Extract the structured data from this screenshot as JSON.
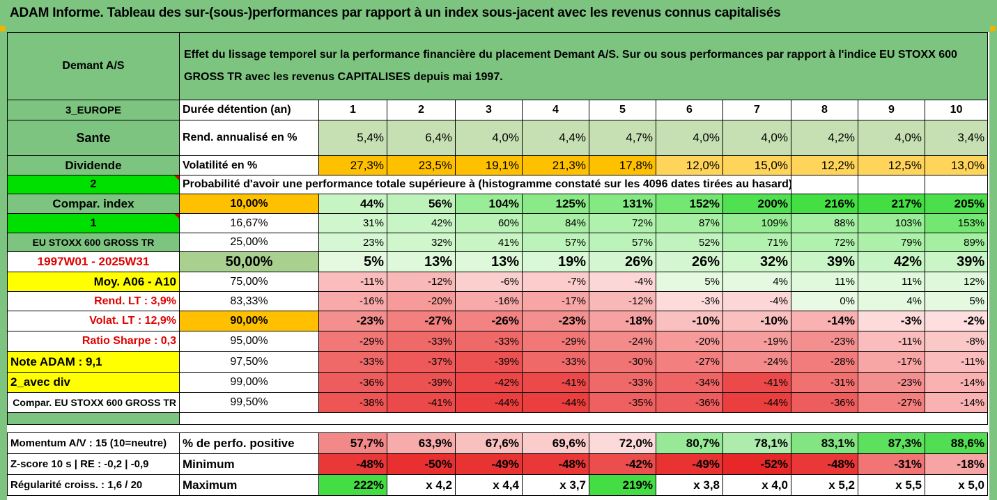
{
  "title": "ADAM Informe. Tableau des sur-(sous-)performances par rapport à un index sous-jacent avec les revenus connus capitalisés",
  "header": {
    "fund": "Demant A/S",
    "description": "Effet du lissage temporel sur la performance financière du placement Demant A/S. Sur ou sous performances par rapport à l'indice EU STOXX 600 GROSS TR avec les revenus CAPITALISES depuis mai 1997."
  },
  "left_labels": {
    "region": "3_EUROPE",
    "sector": "Sante",
    "dividend": "Dividende",
    "code2": "2",
    "compar_index": "Compar. index",
    "code1": "1",
    "index_name": "EU STOXX 600 GROSS TR",
    "period": "1997W01 - 2025W31",
    "moy": "Moy. A06 - A10",
    "rend_lt": "Rend. LT :    3,9%",
    "volat_lt": "Volat. LT :   12,9%",
    "sharpe": "Ratio Sharpe :    0,3",
    "note": "Note ADAM : 9,1",
    "avec_div": "2_avec div",
    "compar_full": "Compar. EU STOXX 600 GROSS TR"
  },
  "durations": {
    "label": "Durée détention (an)",
    "years": [
      "1",
      "2",
      "3",
      "4",
      "5",
      "6",
      "7",
      "8",
      "9",
      "10"
    ]
  },
  "rend": {
    "label": "Rend. annualisé en %",
    "values": [
      "5,4%",
      "6,4%",
      "4,0%",
      "4,4%",
      "4,7%",
      "4,0%",
      "4,0%",
      "4,2%",
      "4,0%",
      "3,4%"
    ]
  },
  "vol": {
    "label": "Volatilité en %",
    "values": [
      "27,3%",
      "23,5%",
      "19,1%",
      "21,3%",
      "17,8%",
      "12,0%",
      "15,0%",
      "12,2%",
      "12,5%",
      "13,0%"
    ]
  },
  "prob_title": "Probabilité d'avoir une performance totale supérieure à (histogramme constaté sur les 4096 dates tirées au hasard)",
  "quantiles": [
    {
      "q": "10,00%",
      "v": [
        "44%",
        "56%",
        "104%",
        "125%",
        "131%",
        "152%",
        "200%",
        "216%",
        "217%",
        "205%"
      ]
    },
    {
      "q": "16,67%",
      "v": [
        "31%",
        "42%",
        "60%",
        "84%",
        "72%",
        "87%",
        "109%",
        "88%",
        "103%",
        "153%"
      ]
    },
    {
      "q": "25,00%",
      "v": [
        "23%",
        "32%",
        "41%",
        "57%",
        "57%",
        "52%",
        "71%",
        "72%",
        "79%",
        "89%"
      ]
    },
    {
      "q": "50,00%",
      "v": [
        "5%",
        "13%",
        "13%",
        "19%",
        "26%",
        "26%",
        "32%",
        "39%",
        "42%",
        "39%"
      ]
    },
    {
      "q": "75,00%",
      "v": [
        "-11%",
        "-12%",
        "-6%",
        "-7%",
        "-4%",
        "5%",
        "4%",
        "11%",
        "11%",
        "12%"
      ]
    },
    {
      "q": "83,33%",
      "v": [
        "-16%",
        "-20%",
        "-16%",
        "-17%",
        "-12%",
        "-3%",
        "-4%",
        "0%",
        "4%",
        "5%"
      ]
    },
    {
      "q": "90,00%",
      "v": [
        "-23%",
        "-27%",
        "-26%",
        "-23%",
        "-18%",
        "-10%",
        "-10%",
        "-14%",
        "-3%",
        "-2%"
      ]
    },
    {
      "q": "95,00%",
      "v": [
        "-29%",
        "-33%",
        "-33%",
        "-29%",
        "-24%",
        "-20%",
        "-19%",
        "-23%",
        "-11%",
        "-8%"
      ]
    },
    {
      "q": "97,50%",
      "v": [
        "-33%",
        "-37%",
        "-39%",
        "-33%",
        "-30%",
        "-27%",
        "-24%",
        "-28%",
        "-17%",
        "-11%"
      ]
    },
    {
      "q": "99,00%",
      "v": [
        "-36%",
        "-39%",
        "-42%",
        "-41%",
        "-33%",
        "-34%",
        "-41%",
        "-31%",
        "-23%",
        "-14%"
      ]
    },
    {
      "q": "99,50%",
      "v": [
        "-38%",
        "-41%",
        "-44%",
        "-44%",
        "-35%",
        "-36%",
        "-44%",
        "-36%",
        "-27%",
        "-14%"
      ]
    }
  ],
  "bottom": {
    "momentum": {
      "label": "Momentum A/V : 15 (10=neutre)",
      "metric": "% de perfo. positive",
      "values": [
        "57,7%",
        "63,9%",
        "67,6%",
        "69,6%",
        "72,0%",
        "80,7%",
        "78,1%",
        "83,1%",
        "87,3%",
        "88,6%"
      ]
    },
    "zscore": {
      "label": "Z-score 10 s  |  RE : -0,2  |  -0,9",
      "metric": "Minimum",
      "values": [
        "-48%",
        "-50%",
        "-49%",
        "-48%",
        "-42%",
        "-49%",
        "-52%",
        "-48%",
        "-31%",
        "-18%"
      ]
    },
    "regularite": {
      "label": "Régularité croiss. : 1,6 / 20",
      "metric": "Maximum",
      "values": [
        "222%",
        "x 4,2",
        "x 4,4",
        "x 3,7",
        "219%",
        "x 3,8",
        "x 4,0",
        "x 5,2",
        "x 5,5",
        "x 5,0"
      ]
    }
  },
  "colors": {
    "header_green": "#7cc47f",
    "bright_green": "#00e000",
    "yellow": "#ffff00",
    "orange": "#ffc000",
    "light_green": "#c6e0b4",
    "red_text": "#e00000"
  }
}
